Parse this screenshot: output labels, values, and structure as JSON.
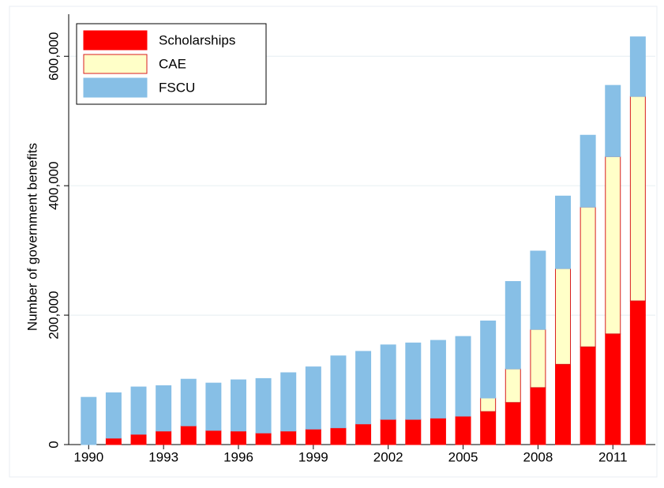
{
  "chart_data": {
    "type": "stacked_bar",
    "y_label": "Number of government benefits",
    "x": [
      1990,
      1991,
      1992,
      1993,
      1994,
      1995,
      1996,
      1997,
      1998,
      1999,
      2000,
      2001,
      2002,
      2003,
      2004,
      2005,
      2006,
      2007,
      2008,
      2009,
      2010,
      2011,
      2012
    ],
    "xlim": [
      1989.2,
      2012.7
    ],
    "xticks": [
      1990,
      1993,
      1996,
      1999,
      2002,
      2005,
      2008,
      2011
    ],
    "ylim": [
      0,
      665000
    ],
    "yticks": [
      0,
      {
        "value": 200000,
        "label": "200,000"
      },
      {
        "value": 400000,
        "label": "400,000"
      },
      {
        "value": 600000,
        "label": "600,000"
      }
    ],
    "grid": true,
    "legend": "top-left",
    "series": [
      {
        "name": "Scholarships",
        "color": "#ff0000",
        "edge": "#ff0000",
        "values": [
          0,
          10000,
          16000,
          21000,
          29000,
          22000,
          21000,
          18000,
          21000,
          24000,
          26000,
          32000,
          39000,
          39000,
          41000,
          44000,
          51000,
          65000,
          88000,
          124000,
          151000,
          171000,
          222000
        ]
      },
      {
        "name": "CAE",
        "color": "#ffffc8",
        "edge": "#d81e1e",
        "values": [
          0,
          0,
          0,
          0,
          0,
          0,
          0,
          0,
          0,
          0,
          0,
          0,
          0,
          0,
          0,
          0,
          21000,
          52000,
          90000,
          148000,
          216000,
          274000,
          316000
        ]
      },
      {
        "name": "FSCU",
        "color": "#87bfe6",
        "edge": "#87bfe6",
        "values": [
          73000,
          70000,
          73000,
          70000,
          72000,
          73000,
          79000,
          84000,
          90000,
          96000,
          111000,
          112000,
          115000,
          118000,
          120000,
          123000,
          119000,
          135000,
          121000,
          112000,
          111000,
          110000,
          92000
        ]
      }
    ]
  }
}
